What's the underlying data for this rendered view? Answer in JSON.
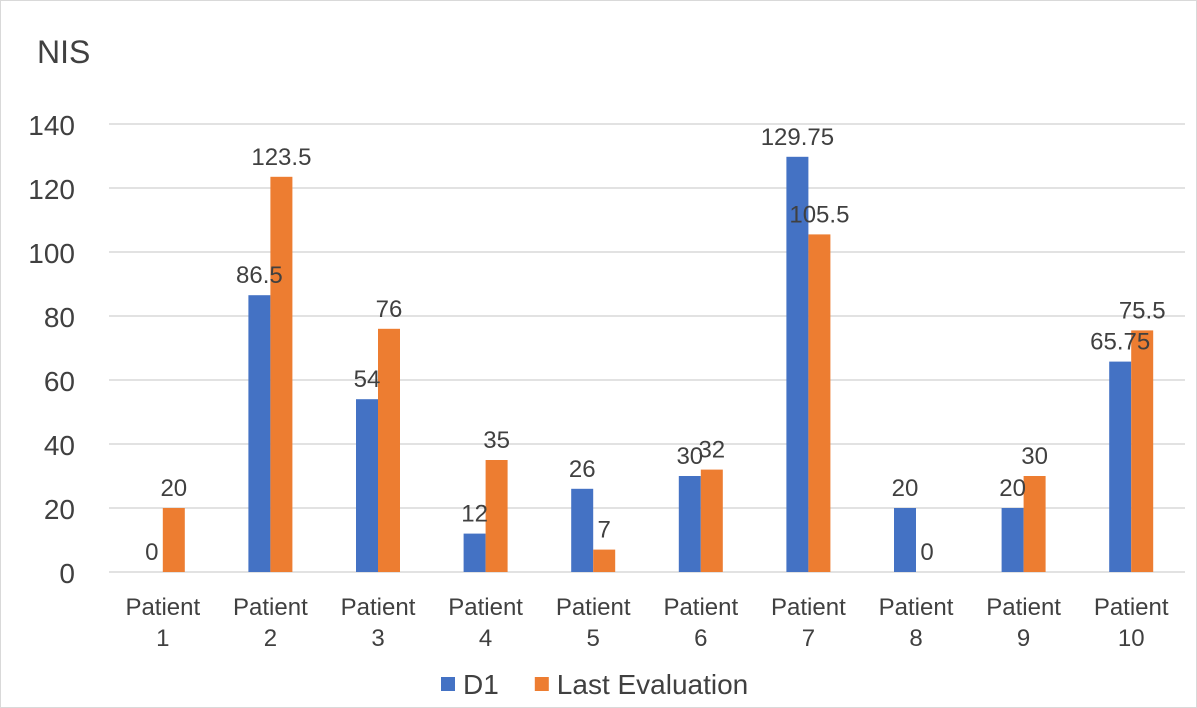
{
  "chart_data": {
    "type": "bar",
    "title": "NIS",
    "categories": [
      [
        "Patient",
        "1"
      ],
      [
        "Patient",
        "2"
      ],
      [
        "Patient",
        "3"
      ],
      [
        "Patient",
        "4"
      ],
      [
        "Patient",
        "5"
      ],
      [
        "Patient",
        "6"
      ],
      [
        "Patient",
        "7"
      ],
      [
        "Patient",
        "8"
      ],
      [
        "Patient",
        "9"
      ],
      [
        "Patient",
        "10"
      ]
    ],
    "series": [
      {
        "name": "D1",
        "color": "#4472C4",
        "values": [
          0,
          86.5,
          54,
          12,
          26,
          30,
          129.75,
          20,
          20,
          65.75
        ],
        "labels": [
          "0",
          "86.5",
          "54",
          "12",
          "26",
          "30",
          "129.75",
          "20",
          "20",
          "65.75"
        ]
      },
      {
        "name": "Last Evaluation",
        "color": "#ED7D31",
        "values": [
          20,
          123.5,
          76,
          35,
          7,
          32,
          105.5,
          0,
          30,
          75.5
        ],
        "labels": [
          "20",
          "123.5",
          "76",
          "35",
          "7",
          "32",
          "105.5",
          "0",
          "30",
          "75.5"
        ]
      }
    ],
    "ylim": [
      0,
      140
    ],
    "yticks": [
      0,
      20,
      40,
      60,
      80,
      100,
      120,
      140
    ],
    "grid": true,
    "legend_position": "bottom"
  }
}
